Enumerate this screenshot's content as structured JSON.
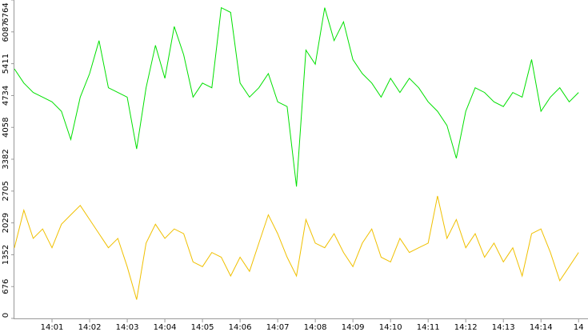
{
  "chart_data": {
    "type": "line",
    "x": [
      0,
      0.25,
      0.5,
      0.75,
      1,
      1.25,
      1.5,
      1.75,
      2,
      2.25,
      2.5,
      2.75,
      3,
      3.25,
      3.5,
      3.75,
      4,
      4.25,
      4.5,
      4.75,
      5,
      5.25,
      5.5,
      5.75,
      6,
      6.25,
      6.5,
      6.75,
      7,
      7.25,
      7.5,
      7.75,
      8,
      8.25,
      8.5,
      8.75,
      9,
      9.25,
      9.5,
      9.75,
      10,
      10.25,
      10.5,
      10.75,
      11,
      11.25,
      11.5,
      11.75,
      12,
      12.25,
      12.5,
      12.75,
      13,
      13.25,
      13.5,
      13.75,
      14,
      14.25,
      14.5,
      14.75,
      15
    ],
    "series": [
      {
        "color": "#00e000",
        "values": [
          5300,
          5000,
          4800,
          4700,
          4600,
          4400,
          3800,
          4700,
          5200,
          5900,
          4900,
          4800,
          4700,
          3600,
          4900,
          5800,
          5100,
          6200,
          5600,
          4700,
          5000,
          4900,
          6600,
          6500,
          5000,
          4700,
          4900,
          5200,
          4600,
          4500,
          2800,
          5700,
          5400,
          6600,
          5900,
          6300,
          5500,
          5200,
          5000,
          4700,
          5100,
          4800,
          5100,
          4900,
          4600,
          4400,
          4100,
          3400,
          4400,
          4900,
          4800,
          4600,
          4500,
          4800,
          4700,
          5500,
          4400,
          4700,
          4900,
          4600,
          4800
        ]
      },
      {
        "color": "#f0c000",
        "values": [
          1500,
          2300,
          1700,
          1900,
          1500,
          2000,
          2200,
          2400,
          2100,
          1800,
          1500,
          1700,
          1100,
          400,
          1600,
          2000,
          1700,
          1900,
          1800,
          1200,
          1100,
          1400,
          1300,
          900,
          1300,
          1000,
          1600,
          2200,
          1800,
          1300,
          900,
          2100,
          1600,
          1500,
          1800,
          1400,
          1100,
          1600,
          1900,
          1300,
          1200,
          1700,
          1400,
          1500,
          1600,
          2600,
          1700,
          2100,
          1500,
          1800,
          1300,
          1600,
          1200,
          1500,
          900,
          1800,
          1900,
          1400,
          800,
          1100,
          1400
        ]
      }
    ],
    "xlim": [
      0,
      15.25
    ],
    "xticks": [
      {
        "value": 1,
        "label": "14:01"
      },
      {
        "value": 2,
        "label": "14:02"
      },
      {
        "value": 3,
        "label": "14:03"
      },
      {
        "value": 4,
        "label": "14:04"
      },
      {
        "value": 5,
        "label": "14:05"
      },
      {
        "value": 6,
        "label": "14:06"
      },
      {
        "value": 7,
        "label": "14:07"
      },
      {
        "value": 8,
        "label": "14:08"
      },
      {
        "value": 9,
        "label": "14:09"
      },
      {
        "value": 10,
        "label": "14:10"
      },
      {
        "value": 11,
        "label": "14:11"
      },
      {
        "value": 12,
        "label": "14:12"
      },
      {
        "value": 13,
        "label": "14:13"
      },
      {
        "value": 14,
        "label": "14:14"
      },
      {
        "value": 15,
        "label": "14"
      }
    ],
    "ylim": [
      0,
      6764
    ],
    "yticks": [
      0,
      676,
      1352,
      2029,
      2705,
      3382,
      4058,
      4734,
      5411,
      6087,
      6764
    ]
  }
}
